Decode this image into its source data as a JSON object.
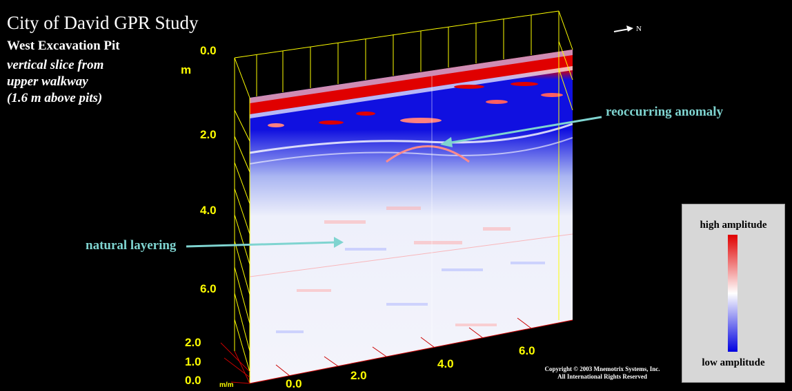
{
  "title": "City of David GPR Study",
  "subtitle_lines": [
    "West Excavation Pit",
    "vertical slice from",
    "upper walkway",
    "(1.6 m above pits)"
  ],
  "north_label": "N",
  "axis_unit": "m",
  "depth_ticks": [
    "0.0",
    "2.0",
    "4.0",
    "6.0"
  ],
  "width_ticks": [
    "0.0",
    "1.0",
    "2.0"
  ],
  "width_unit": "m/m",
  "length_ticks": [
    "0.0",
    "2.0",
    "4.0",
    "6.0"
  ],
  "annotations": {
    "anomaly": "reoccurring anomaly",
    "layering": "natural layering"
  },
  "legend": {
    "high": "high amplitude",
    "low": "low amplitude"
  },
  "copyright": [
    "Copyright © 2003 Mnemotrix Systems, Inc.",
    "All International Rights Reserved"
  ],
  "colors": {
    "axis": "#ffff00",
    "high": "#e00000",
    "mid": "#ffffff",
    "low": "#0000e0",
    "annotation": "#7fd4d0",
    "red_axis": "#cc0000"
  }
}
